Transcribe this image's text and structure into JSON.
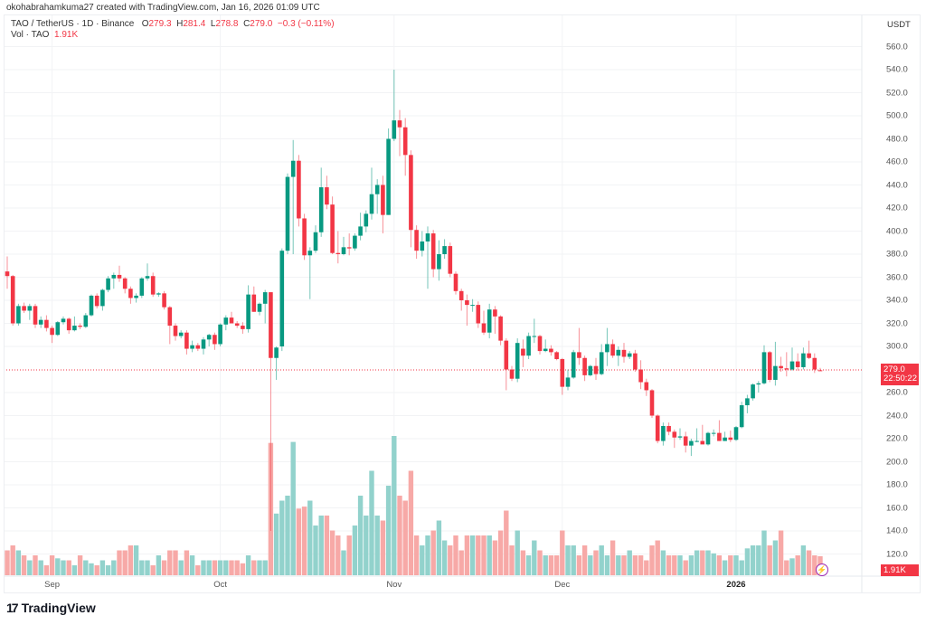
{
  "credit": "okohabrahamkuma27 created with TradingView.com, Jan 16, 2026 01:09 UTC",
  "legend": {
    "symbol": "TAO / TetherUS · 1D · Binance",
    "o_label": "O",
    "o": "279.3",
    "h_label": "H",
    "h": "281.4",
    "l_label": "L",
    "l": "278.8",
    "c_label": "C",
    "c": "279.0",
    "change": "−0.3 (−0.11%)",
    "vol_label": "Vol · TAO",
    "vol": "1.91K"
  },
  "currency": "USDT",
  "last_price": "279.0",
  "countdown": "22:50:22",
  "last_volume": "1.91K",
  "logo_text": "TradingView",
  "colors": {
    "up": "#089981",
    "down": "#f23645",
    "vol_up": "#92d2cc",
    "vol_down": "#f7a9a7",
    "grid": "#f2f3f5"
  },
  "chart_data": {
    "type": "candlestick",
    "title": "TAO / TetherUS · 1D · Binance",
    "ylabel": "USDT",
    "ylim": [
      100,
      570
    ],
    "price_ticks": [
      "560.0",
      "540.0",
      "520.0",
      "500.0",
      "480.0",
      "460.0",
      "440.0",
      "420.0",
      "400.0",
      "380.0",
      "360.0",
      "340.0",
      "320.0",
      "300.0",
      "260.0",
      "240.0",
      "220.0",
      "200.0",
      "180.0",
      "160.0",
      "140.0",
      "120.0"
    ],
    "time_labels": [
      {
        "label": "Sep",
        "candle_index": 8,
        "bold": false
      },
      {
        "label": "Oct",
        "candle_index": 38,
        "bold": false
      },
      {
        "label": "Nov",
        "candle_index": 69,
        "bold": false
      },
      {
        "label": "Dec",
        "candle_index": 99,
        "bold": false
      },
      {
        "label": "2026",
        "candle_index": 130,
        "bold": true
      }
    ],
    "columns": [
      "open",
      "high",
      "low",
      "close",
      "volume_k"
    ],
    "candles": [
      [
        365,
        378,
        350,
        361,
        2.5
      ],
      [
        361,
        362,
        318,
        320,
        3
      ],
      [
        320,
        337,
        318,
        335,
        2.5
      ],
      [
        335,
        338,
        329,
        331,
        2
      ],
      [
        331,
        337,
        323,
        335,
        1.5
      ],
      [
        335,
        337,
        316,
        319,
        2
      ],
      [
        319,
        326,
        316,
        323,
        1.5
      ],
      [
        323,
        327,
        313,
        316,
        1
      ],
      [
        316,
        318,
        303,
        310,
        2
      ],
      [
        310,
        322,
        309,
        321,
        1.7
      ],
      [
        321,
        326,
        319,
        324,
        1.5
      ],
      [
        324,
        325,
        311,
        314,
        1.5
      ],
      [
        314,
        326,
        313,
        318,
        1
      ],
      [
        318,
        320,
        315,
        317,
        2
      ],
      [
        317,
        329,
        316,
        327,
        1.5
      ],
      [
        327,
        345,
        326,
        344,
        1.2
      ],
      [
        344,
        346,
        333,
        335,
        1
      ],
      [
        335,
        350,
        331,
        349,
        1.5
      ],
      [
        349,
        361,
        347,
        359,
        1
      ],
      [
        359,
        364,
        350,
        362,
        1.5
      ],
      [
        362,
        370,
        356,
        359,
        2.5
      ],
      [
        359,
        360,
        346,
        350,
        2.5
      ],
      [
        350,
        352,
        337,
        342,
        3
      ],
      [
        342,
        346,
        338,
        344,
        3
      ],
      [
        344,
        360,
        342,
        359,
        1.5
      ],
      [
        359,
        372,
        357,
        361,
        1.5
      ],
      [
        361,
        364,
        343,
        345,
        1
      ],
      [
        345,
        347,
        343,
        346,
        2
      ],
      [
        346,
        348,
        332,
        334,
        1.5
      ],
      [
        334,
        335,
        302,
        318,
        2.5
      ],
      [
        318,
        320,
        305,
        309,
        2.5
      ],
      [
        309,
        314,
        307,
        312,
        1.5
      ],
      [
        312,
        314,
        293,
        298,
        2.5
      ],
      [
        298,
        305,
        295,
        301,
        2
      ],
      [
        301,
        303,
        296,
        298,
        1
      ],
      [
        298,
        308,
        293,
        306,
        1.5
      ],
      [
        306,
        311,
        300,
        310,
        1.5
      ],
      [
        310,
        312,
        297,
        302,
        1.5
      ],
      [
        302,
        320,
        300,
        319,
        1.5
      ],
      [
        319,
        327,
        314,
        325,
        1.5
      ],
      [
        325,
        330,
        320,
        320,
        1.5
      ],
      [
        320,
        322,
        316,
        318,
        1.5
      ],
      [
        318,
        321,
        311,
        315,
        1.2
      ],
      [
        315,
        353,
        312,
        345,
        2
      ],
      [
        345,
        352,
        330,
        330,
        1.5
      ],
      [
        330,
        338,
        327,
        337,
        1.5
      ],
      [
        337,
        349,
        320,
        347,
        1.5
      ],
      [
        347,
        347,
        140,
        290,
        13.3
      ],
      [
        290,
        300,
        271,
        299,
        6.2
      ],
      [
        300,
        385,
        296,
        383,
        7.5
      ],
      [
        383,
        450,
        380,
        447,
        8
      ],
      [
        447,
        479,
        380,
        461,
        13.4
      ],
      [
        461,
        466,
        404,
        411,
        6.7
      ],
      [
        411,
        415,
        375,
        379,
        6.9
      ],
      [
        379,
        386,
        341,
        383,
        7.5
      ],
      [
        383,
        405,
        381,
        399,
        5
      ],
      [
        399,
        455,
        395,
        438,
        6
      ],
      [
        438,
        448,
        419,
        423,
        6
      ],
      [
        423,
        430,
        380,
        381,
        4.5
      ],
      [
        381,
        400,
        372,
        380,
        4
      ],
      [
        380,
        395,
        379,
        386,
        2.5
      ],
      [
        386,
        398,
        379,
        385,
        4
      ],
      [
        385,
        398,
        383,
        396,
        5
      ],
      [
        396,
        416,
        392,
        404,
        8
      ],
      [
        404,
        418,
        399,
        415,
        6
      ],
      [
        415,
        455,
        410,
        432,
        10.5
      ],
      [
        432,
        445,
        415,
        440,
        6
      ],
      [
        440,
        448,
        398,
        414,
        5.5
      ],
      [
        414,
        489,
        414,
        480,
        9
      ],
      [
        480,
        540,
        478,
        496,
        14
      ],
      [
        496,
        505,
        465,
        490,
        8
      ],
      [
        490,
        498,
        448,
        466,
        7.5
      ],
      [
        466,
        470,
        386,
        401,
        10.5
      ],
      [
        401,
        405,
        376,
        383,
        4
      ],
      [
        383,
        400,
        378,
        391,
        3
      ],
      [
        391,
        404,
        350,
        398,
        4
      ],
      [
        398,
        401,
        360,
        367,
        4.5
      ],
      [
        367,
        392,
        357,
        380,
        5.5
      ],
      [
        380,
        393,
        376,
        387,
        3.5
      ],
      [
        387,
        390,
        360,
        363,
        3
      ],
      [
        363,
        365,
        345,
        348,
        4
      ],
      [
        348,
        350,
        331,
        340,
        2.5
      ],
      [
        340,
        345,
        318,
        336,
        4
      ],
      [
        336,
        341,
        330,
        336,
        4
      ],
      [
        336,
        339,
        316,
        320,
        4
      ],
      [
        320,
        331,
        310,
        312,
        4
      ],
      [
        312,
        337,
        307,
        332,
        4
      ],
      [
        332,
        335,
        311,
        326,
        3.5
      ],
      [
        326,
        327,
        301,
        305,
        4.5
      ],
      [
        305,
        307,
        262,
        280,
        6.5
      ],
      [
        280,
        283,
        270,
        272,
        3
      ],
      [
        272,
        307,
        269,
        303,
        4.5
      ],
      [
        298,
        306,
        282,
        292,
        2.5
      ],
      [
        292,
        312,
        289,
        309,
        2
      ],
      [
        309,
        324,
        303,
        309,
        3.5
      ],
      [
        309,
        310,
        293,
        296,
        2.5
      ],
      [
        296,
        306,
        295,
        298,
        2
      ],
      [
        298,
        301,
        292,
        295,
        2
      ],
      [
        295,
        296,
        288,
        289,
        2
      ],
      [
        289,
        290,
        258,
        265,
        4.5
      ],
      [
        265,
        280,
        262,
        273,
        3
      ],
      [
        273,
        297,
        272,
        295,
        3
      ],
      [
        295,
        316,
        284,
        290,
        2
      ],
      [
        290,
        292,
        270,
        275,
        3
      ],
      [
        275,
        284,
        274,
        283,
        2
      ],
      [
        283,
        290,
        271,
        276,
        2.5
      ],
      [
        276,
        302,
        275,
        295,
        3
      ],
      [
        295,
        316,
        283,
        302,
        2
      ],
      [
        302,
        306,
        290,
        292,
        3.5
      ],
      [
        292,
        300,
        283,
        297,
        2
      ],
      [
        297,
        303,
        286,
        291,
        2
      ],
      [
        291,
        296,
        289,
        294,
        2.5
      ],
      [
        294,
        297,
        278,
        280,
        2
      ],
      [
        280,
        288,
        263,
        269,
        2
      ],
      [
        269,
        272,
        257,
        262,
        1.5
      ],
      [
        262,
        263,
        238,
        240,
        3
      ],
      [
        240,
        241,
        216,
        218,
        3.5
      ],
      [
        218,
        234,
        214,
        231,
        2.5
      ],
      [
        231,
        234,
        223,
        226,
        2
      ],
      [
        226,
        228,
        212,
        221,
        2
      ],
      [
        221,
        229,
        219,
        222,
        2
      ],
      [
        222,
        226,
        208,
        214,
        1.5
      ],
      [
        214,
        220,
        205,
        218,
        2
      ],
      [
        218,
        229,
        217,
        218,
        2.5
      ],
      [
        218,
        232,
        217,
        215,
        2.5
      ],
      [
        215,
        226,
        214,
        225,
        2.5
      ],
      [
        225,
        228,
        222,
        225,
        2.2
      ],
      [
        225,
        236,
        218,
        218,
        2
      ],
      [
        218,
        226,
        218,
        221,
        1.5
      ],
      [
        221,
        227,
        217,
        219,
        2
      ],
      [
        219,
        231,
        218,
        230,
        2
      ],
      [
        230,
        252,
        229,
        249,
        1.5
      ],
      [
        249,
        258,
        242,
        255,
        2.7
      ],
      [
        255,
        268,
        253,
        267,
        3
      ],
      [
        267,
        270,
        260,
        268,
        3
      ],
      [
        268,
        301,
        267,
        295,
        4.5
      ],
      [
        295,
        296,
        269,
        271,
        3
      ],
      [
        271,
        304,
        266,
        283,
        3.5
      ],
      [
        283,
        291,
        278,
        281,
        4.5
      ],
      [
        281,
        295,
        274,
        280,
        1.5
      ],
      [
        280,
        299,
        279,
        287,
        1.7
      ],
      [
        287,
        294,
        279,
        282,
        2
      ],
      [
        282,
        299,
        280,
        294,
        3
      ],
      [
        294,
        305,
        289,
        290,
        2.5
      ],
      [
        290,
        294,
        277,
        280,
        2
      ],
      [
        279.3,
        281.4,
        278.8,
        279.0,
        1.91
      ]
    ]
  }
}
